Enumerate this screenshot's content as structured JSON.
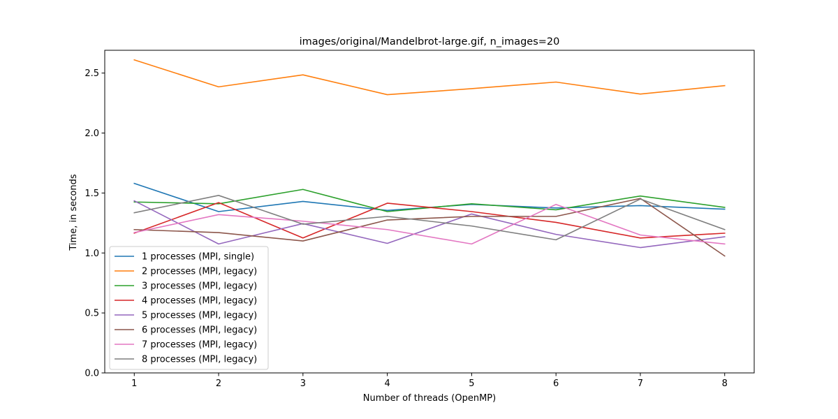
{
  "chart_data": {
    "type": "line",
    "title": "images/original/Mandelbrot-large.gif, n_images=20",
    "xlabel": "Number of threads (OpenMP)",
    "ylabel": "Time, in seconds",
    "x": [
      1,
      2,
      3,
      4,
      5,
      6,
      7,
      8
    ],
    "xticks": [
      "1",
      "2",
      "3",
      "4",
      "5",
      "6",
      "7",
      "8"
    ],
    "yticks": [
      "0.0",
      "0.5",
      "1.0",
      "1.5",
      "2.0",
      "2.5"
    ],
    "xlim": [
      0.65,
      8.35
    ],
    "ylim": [
      0,
      2.69
    ],
    "grid": false,
    "legend_position": "lower-left",
    "series": [
      {
        "name": "1 processes (MPI, single)",
        "color": "#1f77b4",
        "values": [
          1.58,
          1.345,
          1.43,
          1.355,
          1.405,
          1.375,
          1.395,
          1.365
        ]
      },
      {
        "name": "2 processes (MPI, legacy)",
        "color": "#ff7f0e",
        "values": [
          2.61,
          2.385,
          2.485,
          2.32,
          2.37,
          2.425,
          2.325,
          2.395
        ]
      },
      {
        "name": "3 processes (MPI, legacy)",
        "color": "#2ca02c",
        "values": [
          1.425,
          1.41,
          1.53,
          1.345,
          1.41,
          1.36,
          1.475,
          1.38
        ]
      },
      {
        "name": "4 processes (MPI, legacy)",
        "color": "#d62728",
        "values": [
          1.165,
          1.42,
          1.125,
          1.415,
          1.345,
          1.255,
          1.125,
          1.165
        ]
      },
      {
        "name": "5 processes (MPI, legacy)",
        "color": "#9467bd",
        "values": [
          1.435,
          1.075,
          1.245,
          1.08,
          1.325,
          1.155,
          1.045,
          1.135
        ]
      },
      {
        "name": "6 processes (MPI, legacy)",
        "color": "#8c564b",
        "values": [
          1.195,
          1.17,
          1.1,
          1.275,
          1.305,
          1.305,
          1.455,
          0.975
        ]
      },
      {
        "name": "7 processes (MPI, legacy)",
        "color": "#e377c2",
        "values": [
          1.17,
          1.32,
          1.265,
          1.195,
          1.075,
          1.405,
          1.15,
          1.075
        ]
      },
      {
        "name": "8 processes (MPI, legacy)",
        "color": "#7f7f7f",
        "values": [
          1.335,
          1.48,
          1.24,
          1.305,
          1.225,
          1.11,
          1.45,
          1.195
        ]
      }
    ]
  }
}
